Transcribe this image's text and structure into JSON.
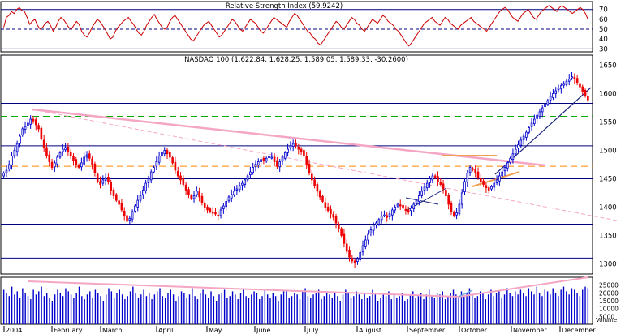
{
  "chart_data": [
    {
      "type": "line",
      "title": "Relative Strength Index (59.9242)",
      "ylim": [
        27,
        78
      ],
      "yticks": [
        30,
        40,
        50,
        60,
        70
      ],
      "levels": {
        "solid": [
          30,
          70
        ],
        "dashed": 50
      },
      "series_color": "#cc0000",
      "values": [
        52,
        62,
        64,
        68,
        66,
        70,
        72,
        69,
        68,
        62,
        55,
        58,
        60,
        54,
        50,
        52,
        56,
        58,
        54,
        48,
        52,
        58,
        62,
        60,
        56,
        52,
        50,
        54,
        58,
        55,
        48,
        44,
        42,
        46,
        52,
        56,
        60,
        58,
        54,
        50,
        45,
        40,
        42,
        48,
        52,
        55,
        58,
        60,
        62,
        58,
        55,
        50,
        46,
        44,
        48,
        54,
        58,
        62,
        65,
        60,
        56,
        52,
        50,
        52,
        58,
        62,
        64,
        60,
        56,
        52,
        48,
        44,
        40,
        38,
        42,
        46,
        50,
        54,
        56,
        58,
        54,
        50,
        46,
        42,
        44,
        48,
        52,
        56,
        60,
        58,
        54,
        50,
        48,
        52,
        56,
        60,
        58,
        56,
        52,
        48,
        46,
        50,
        54,
        58,
        62,
        60,
        58,
        56,
        54,
        52,
        58,
        62,
        66,
        64,
        60,
        56,
        52,
        48,
        46,
        42,
        40,
        36,
        34,
        38,
        42,
        46,
        50,
        54,
        58,
        56,
        52,
        50,
        54,
        58,
        62,
        60,
        56,
        54,
        50,
        48,
        52,
        56,
        60,
        58,
        56,
        60,
        64,
        62,
        58,
        56,
        54,
        50,
        48,
        44,
        40,
        36,
        33,
        36,
        40,
        44,
        48,
        52,
        56,
        58,
        60,
        62,
        58,
        56,
        54,
        58,
        62,
        60,
        56,
        54,
        52,
        50,
        54,
        56,
        58,
        60,
        62,
        58,
        56,
        54,
        52,
        50,
        48,
        52,
        56,
        60,
        64,
        68,
        70,
        72,
        70,
        66,
        62,
        60,
        58,
        62,
        66,
        68,
        70,
        66,
        62,
        60,
        64,
        68,
        70,
        72,
        74,
        72,
        70,
        68,
        72,
        74,
        72,
        70,
        68,
        66,
        68,
        70,
        72,
        70,
        66,
        60
      ]
    },
    {
      "type": "line",
      "title": "NASDAQ 100 (1,622.84, 1,628.25, 1,589.05, 1,589.33, -30.2600)",
      "ylim": [
        1282,
        1668
      ],
      "yticks": [
        1300,
        1350,
        1400,
        1450,
        1500,
        1550,
        1600,
        1650
      ],
      "months": [
        "2004",
        "February",
        "March",
        "April",
        "May",
        "June",
        "July",
        "August",
        "September",
        "October",
        "November",
        "December"
      ],
      "up_color": "#0000cc",
      "down_color": "#ee0000",
      "support_resistance": [
        1583,
        1508,
        1450,
        1370,
        1310
      ],
      "dashed_levels": [
        {
          "y": 1560,
          "color": "#00aa00"
        },
        {
          "y": 1472,
          "color": "#ff8800"
        }
      ],
      "closes": [
        1460,
        1465,
        1475,
        1490,
        1500,
        1512,
        1525,
        1538,
        1542,
        1548,
        1555,
        1552,
        1545,
        1538,
        1520,
        1505,
        1490,
        1480,
        1470,
        1478,
        1488,
        1496,
        1502,
        1505,
        1498,
        1490,
        1482,
        1475,
        1470,
        1478,
        1488,
        1492,
        1486,
        1475,
        1460,
        1445,
        1440,
        1448,
        1452,
        1445,
        1430,
        1420,
        1412,
        1405,
        1395,
        1385,
        1375,
        1380,
        1392,
        1402,
        1412,
        1420,
        1430,
        1442,
        1450,
        1462,
        1470,
        1480,
        1490,
        1496,
        1500,
        1494,
        1488,
        1478,
        1465,
        1455,
        1448,
        1440,
        1430,
        1422,
        1415,
        1420,
        1428,
        1418,
        1408,
        1400,
        1395,
        1392,
        1390,
        1388,
        1385,
        1395,
        1402,
        1410,
        1418,
        1422,
        1428,
        1432,
        1438,
        1442,
        1448,
        1455,
        1462,
        1470,
        1476,
        1480,
        1484,
        1482,
        1486,
        1490,
        1488,
        1480,
        1472,
        1480,
        1488,
        1496,
        1502,
        1508,
        1512,
        1508,
        1502,
        1498,
        1490,
        1475,
        1460,
        1448,
        1438,
        1428,
        1418,
        1410,
        1400,
        1394,
        1388,
        1382,
        1372,
        1362,
        1350,
        1336,
        1322,
        1312,
        1305,
        1302,
        1308,
        1320,
        1332,
        1342,
        1352,
        1360,
        1368,
        1372,
        1378,
        1384,
        1386,
        1382,
        1388,
        1395,
        1400,
        1405,
        1402,
        1398,
        1395,
        1392,
        1398,
        1405,
        1412,
        1420,
        1428,
        1435,
        1442,
        1450,
        1455,
        1452,
        1445,
        1440,
        1432,
        1420,
        1405,
        1392,
        1385,
        1390,
        1405,
        1425,
        1445,
        1460,
        1470,
        1466,
        1460,
        1452,
        1445,
        1440,
        1434,
        1430,
        1436,
        1442,
        1448,
        1455,
        1462,
        1470,
        1478,
        1486,
        1494,
        1502,
        1510,
        1518,
        1525,
        1532,
        1540,
        1548,
        1555,
        1562,
        1568,
        1575,
        1582,
        1588,
        1595,
        1600,
        1605,
        1610,
        1614,
        1618,
        1622,
        1626,
        1630,
        1626,
        1620,
        1612,
        1604,
        1596,
        1589
      ]
    },
    {
      "type": "bar",
      "title": "Volume",
      "ylim": [
        0,
        30000
      ],
      "yticks": [
        5000,
        10000,
        15000,
        20000,
        25000
      ],
      "bar_color": "#0000cc",
      "values": [
        22000,
        20000,
        18000,
        24000,
        19000,
        21000,
        17000,
        23000,
        20000,
        18000,
        16000,
        22000,
        19000,
        21000,
        24000,
        18000,
        20000,
        17000,
        15000,
        19000,
        22000,
        20000,
        18000,
        23000,
        21000,
        19000,
        17000,
        20000,
        24000,
        18000,
        16000,
        19000,
        21000,
        17000,
        22000,
        20000,
        18000,
        15000,
        19000,
        23000,
        21000,
        17000,
        20000,
        22000,
        19000,
        16000,
        18000,
        21000,
        24000,
        20000,
        17000,
        19000,
        22000,
        18000,
        20000,
        16000,
        19000,
        21000,
        23000,
        18000,
        17000,
        20000,
        22000,
        19000,
        15000,
        18000,
        21000,
        20000,
        17000,
        19000,
        23000,
        18000,
        16000,
        20000,
        22000,
        19000,
        17000,
        21000,
        18000,
        15000,
        19000,
        20000,
        22000,
        17000,
        18000,
        21000,
        19000,
        16000,
        20000,
        23000,
        18000,
        17000,
        19000,
        21000,
        20000,
        16000,
        18000,
        22000,
        19000,
        17000,
        20000,
        18000,
        15000,
        19000,
        21000,
        22000,
        17000,
        18000,
        20000,
        19000,
        16000,
        21000,
        23000,
        18000,
        17000,
        19000,
        20000,
        22000,
        16000,
        18000,
        21000,
        19000,
        17000,
        20000,
        18000,
        15000,
        19000,
        22000,
        20000,
        17000,
        18000,
        21000,
        19000,
        16000,
        20000,
        17000,
        18000,
        22000,
        19000,
        15000,
        17000,
        20000,
        18000,
        21000,
        16000,
        19000,
        17000,
        18000,
        20000,
        15000,
        16000,
        19000,
        21000,
        17000,
        18000,
        20000,
        16000,
        19000,
        22000,
        18000,
        17000,
        20000,
        19000,
        21000,
        16000,
        18000,
        20000,
        22000,
        19000,
        17000,
        21000,
        18000,
        20000,
        23000,
        19000,
        17000,
        18000,
        21000,
        20000,
        16000,
        19000,
        22000,
        18000,
        20000,
        21000,
        17000,
        19000,
        23000,
        20000,
        18000,
        21000,
        19000,
        22000,
        20000,
        18000,
        23000,
        21000,
        19000,
        24000,
        20000,
        18000,
        22000,
        21000,
        19000,
        23000,
        20000,
        18000,
        22000,
        24000,
        21000,
        19000,
        23000,
        22000,
        20000,
        18000,
        22000,
        24000,
        23000
      ]
    }
  ]
}
